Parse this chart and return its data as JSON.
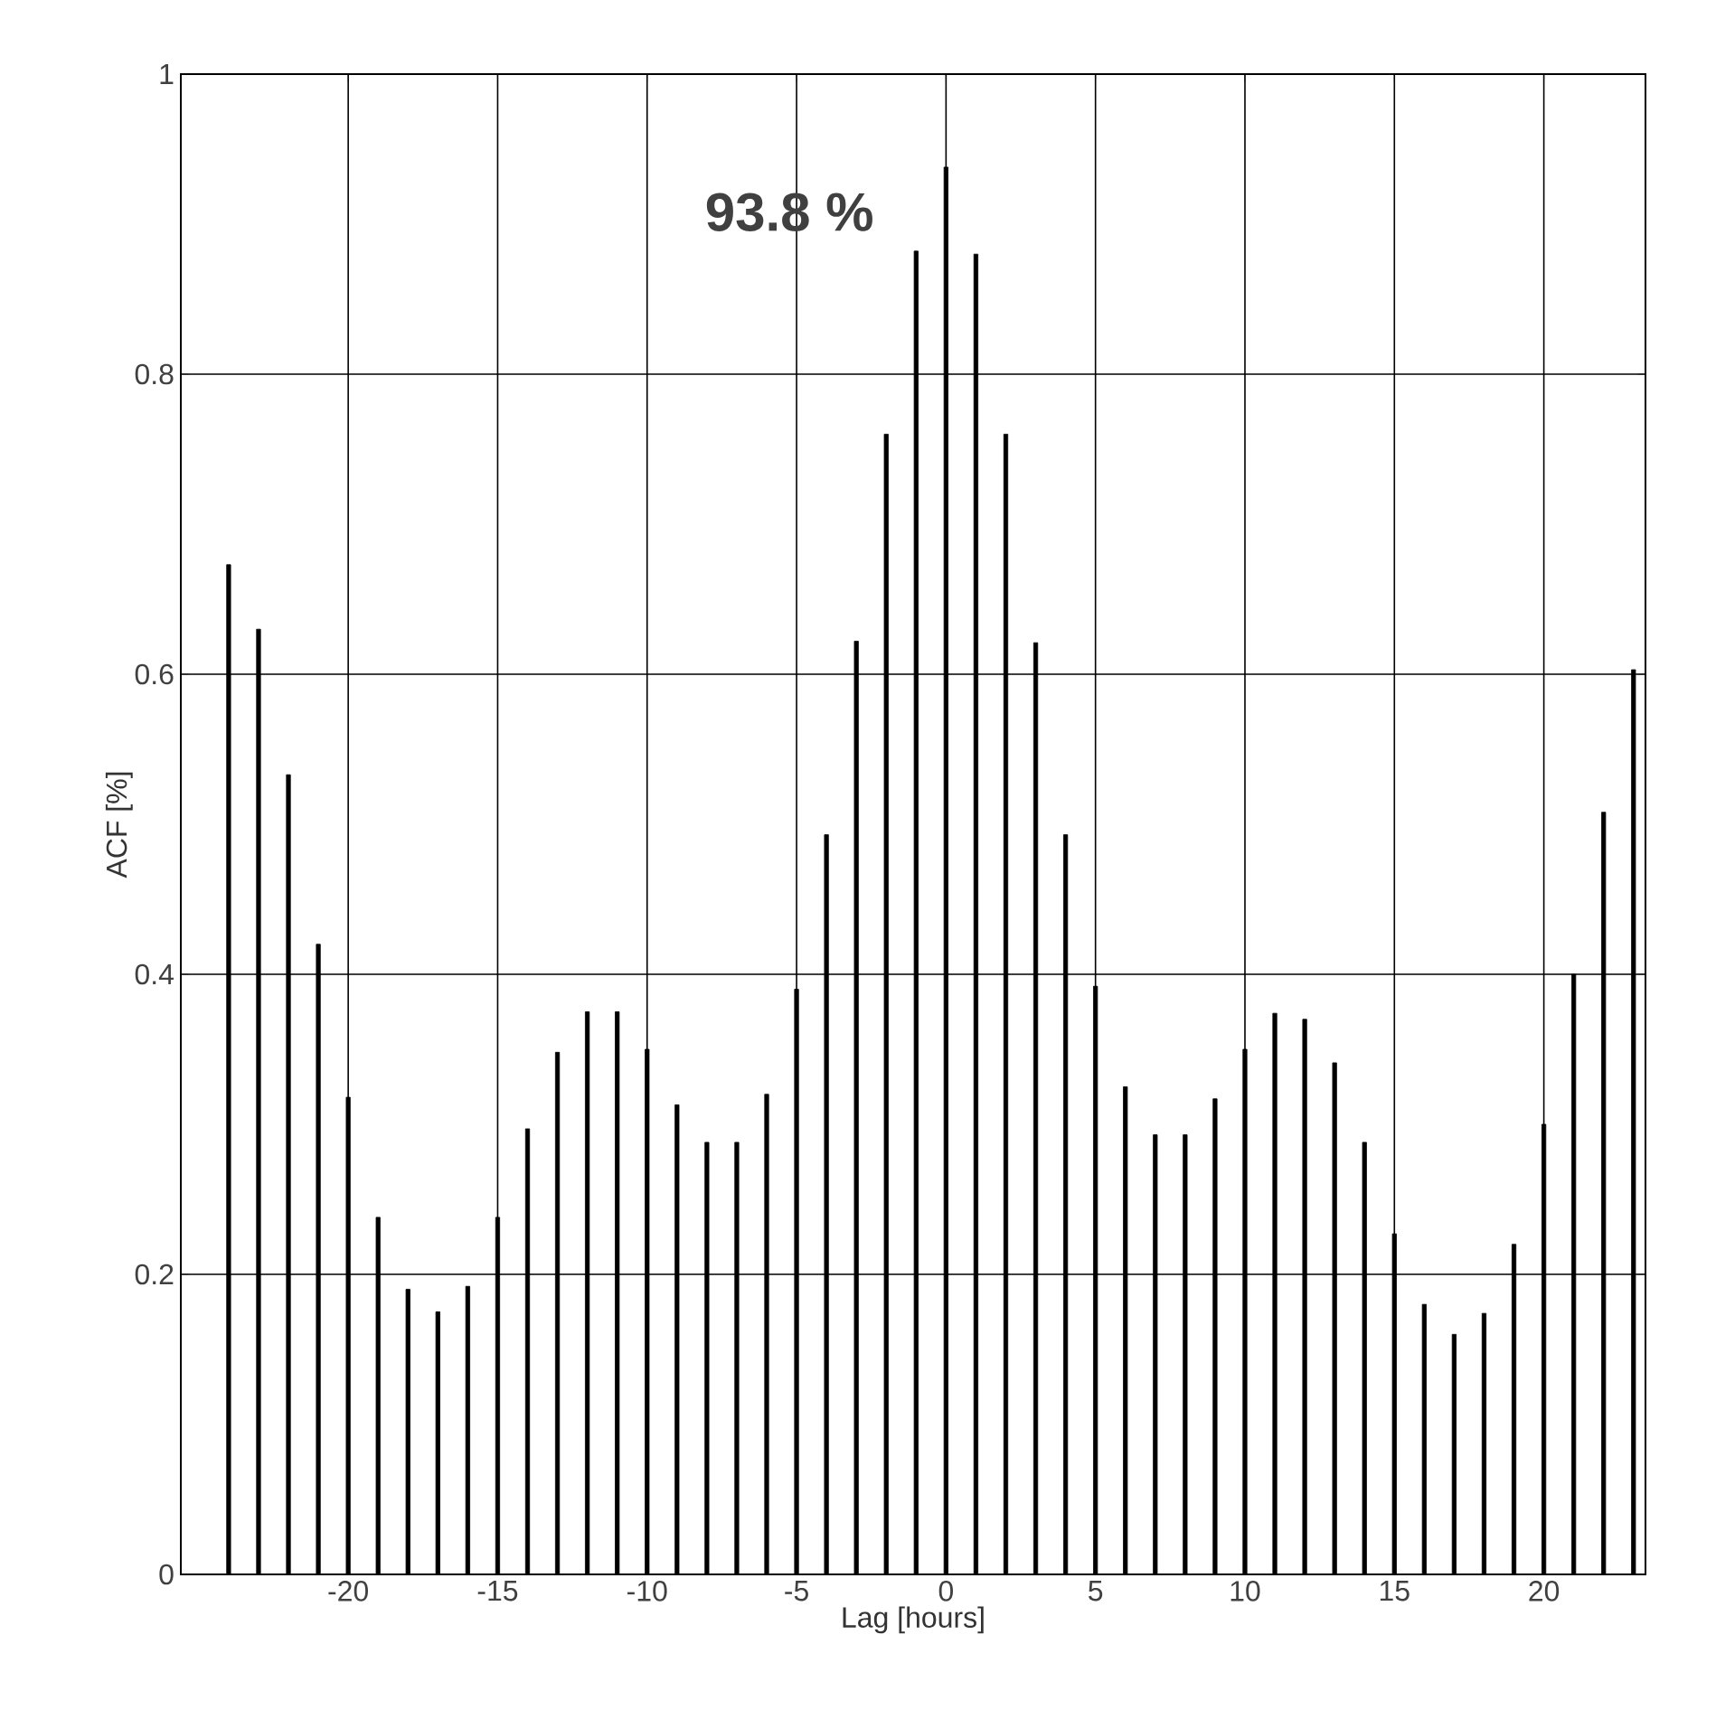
{
  "chart_data": {
    "type": "bar",
    "xlabel": "Lag [hours]",
    "ylabel": "ACF [%]",
    "x": [
      -24,
      -23,
      -22,
      -21,
      -20,
      -19,
      -18,
      -17,
      -16,
      -15,
      -14,
      -13,
      -12,
      -11,
      -10,
      -9,
      -8,
      -7,
      -6,
      -5,
      -4,
      -3,
      -2,
      -1,
      0,
      1,
      2,
      3,
      4,
      5,
      6,
      7,
      8,
      9,
      10,
      11,
      12,
      13,
      14,
      15,
      16,
      17,
      18,
      19,
      20,
      21,
      22,
      23
    ],
    "values": [
      0.673,
      0.63,
      0.533,
      0.42,
      0.318,
      0.238,
      0.19,
      0.175,
      0.192,
      0.238,
      0.297,
      0.348,
      0.375,
      0.375,
      0.35,
      0.313,
      0.288,
      0.288,
      0.32,
      0.39,
      0.493,
      0.622,
      0.76,
      0.882,
      0.938,
      0.88,
      0.76,
      0.621,
      0.493,
      0.392,
      0.325,
      0.293,
      0.293,
      0.317,
      0.35,
      0.374,
      0.37,
      0.341,
      0.288,
      0.227,
      0.18,
      0.16,
      0.174,
      0.22,
      0.3,
      0.4,
      0.508,
      0.603
    ],
    "color": "#000000",
    "xlim": [
      -25.6,
      23.4
    ],
    "ylim": [
      0,
      1
    ],
    "xticks": [
      -20,
      -15,
      -10,
      -5,
      0,
      5,
      10,
      15,
      20
    ],
    "yticks": [
      0,
      0.2,
      0.4,
      0.6,
      0.8,
      1
    ],
    "grid": true,
    "annotations": [
      {
        "text": "93.8 %",
        "x": 0,
        "y": 0.938
      }
    ]
  }
}
